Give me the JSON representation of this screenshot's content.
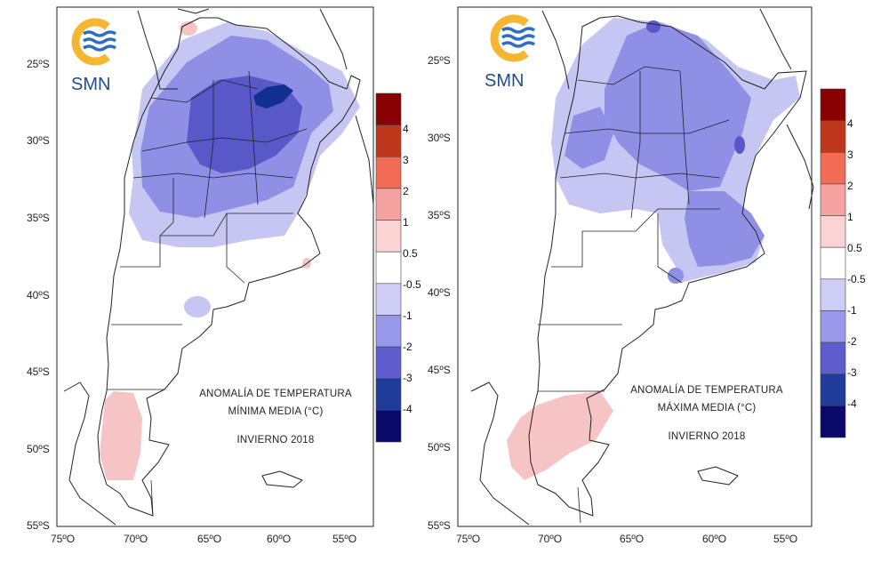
{
  "maps": [
    {
      "title_line1": "ANOMALÍA DE TEMPERATURA",
      "title_line2": "MÍNIMA MEDIA (°C)",
      "season": "INVIERNO 2018",
      "logo_text": "SMN",
      "y_ticks": [
        "25ºS",
        "30ºS",
        "35ºS",
        "40ºS",
        "45ºS",
        "50ºS",
        "55ºS"
      ],
      "x_ticks": [
        "75ºO",
        "70ºO",
        "65ºO",
        "60ºO",
        "55ºO"
      ]
    },
    {
      "title_line1": "ANOMALÍA DE TEMPERATURA",
      "title_line2": "MÁXIMA MEDIA (°C)",
      "season": "INVIERNO 2018",
      "logo_text": "SMN",
      "y_ticks": [
        "25ºS",
        "30ºS",
        "35ºS",
        "40ºS",
        "45ºS",
        "50ºS",
        "55ºS"
      ],
      "x_ticks": [
        "75ºO",
        "70ºO",
        "65ºO",
        "60ºO",
        "55ºO"
      ]
    }
  ],
  "colorbar": {
    "labels": [
      "4",
      "3",
      "2",
      "1",
      "0.5",
      "-0.5",
      "-1",
      "-2",
      "-3",
      "-4"
    ],
    "colors": [
      "#8b0000",
      "#c0381c",
      "#f26b55",
      "#f5a3a0",
      "#fbd3d3",
      "#ffffff",
      "#cdcdf5",
      "#9999ec",
      "#5d5dcd",
      "#1e3c9a",
      "#0a0a6a"
    ]
  },
  "colors": {
    "logo_orange": "#f5b731",
    "logo_blue": "#2f6fbf",
    "pos_light": "#f6c4c4",
    "neg_1": "#c6c6f3",
    "neg_2": "#8f8fe6",
    "neg_3": "#5858c8",
    "neg_4": "#12308f"
  }
}
